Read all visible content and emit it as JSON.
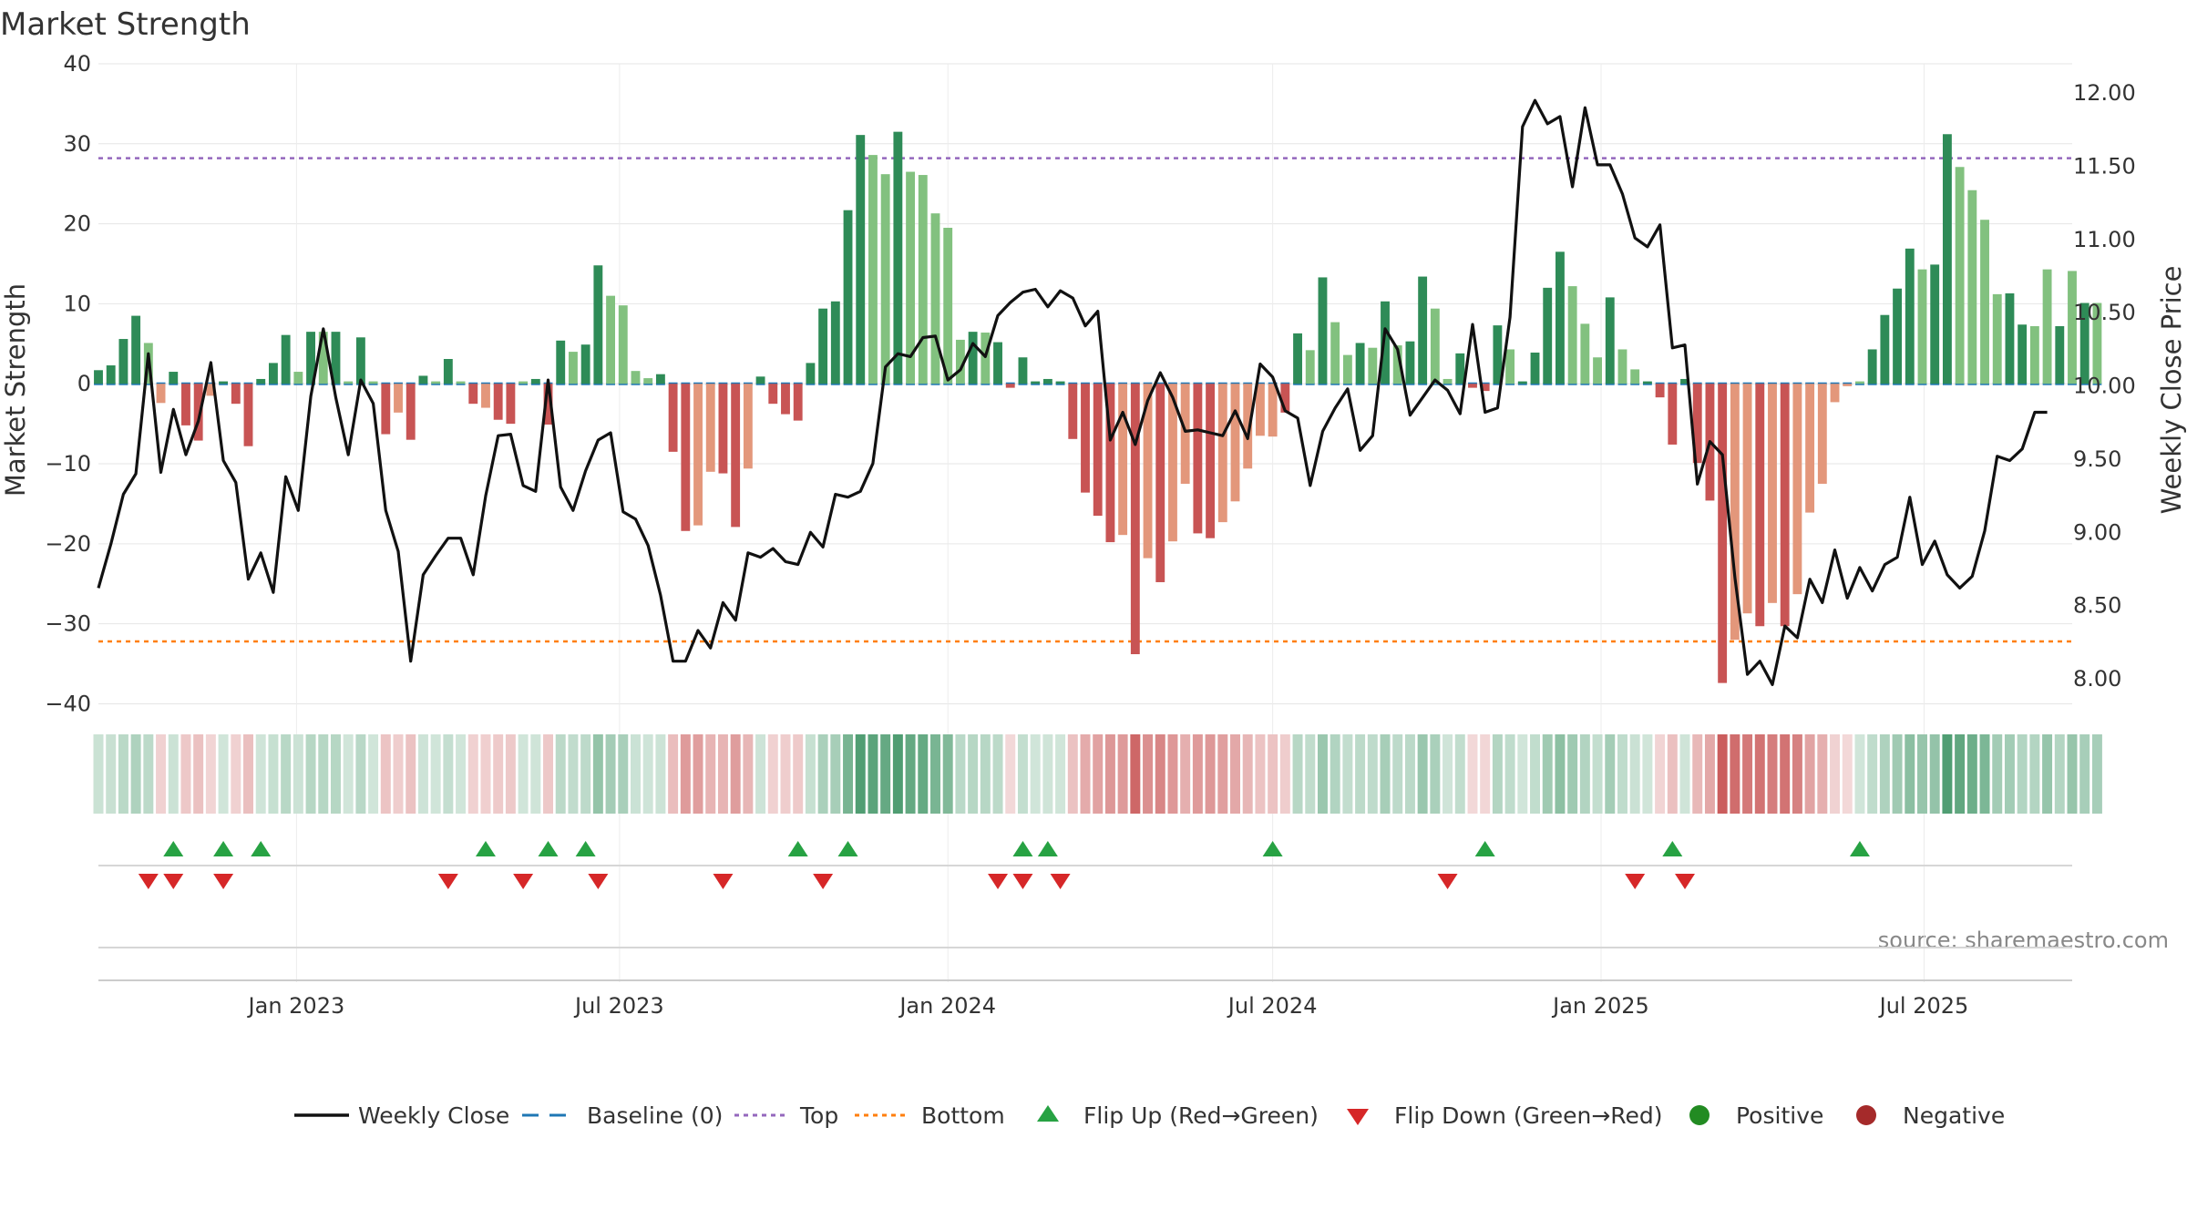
{
  "chart_data": {
    "type": "bar",
    "title": "Market Strength",
    "source": "source: sharemaestro.com",
    "y_left": {
      "label": "Market Strength",
      "lim": [
        -42,
        40
      ],
      "ticks": [
        40,
        30,
        20,
        10,
        0,
        -10,
        -20,
        -30,
        -40
      ],
      "tick_labels": [
        "40",
        "30",
        "20",
        "10",
        "0",
        "−10",
        "−20",
        "−30",
        "−40"
      ]
    },
    "y_right": {
      "label": "Weekly Close Price",
      "lim": [
        7.72,
        12.2
      ],
      "ticks": [
        12.0,
        11.5,
        11.0,
        10.5,
        10.0,
        9.5,
        9.0,
        8.5,
        8.0
      ],
      "tick_labels": [
        "12.00",
        "11.50",
        "11.00",
        "10.50",
        "10.00",
        "9.50",
        "9.00",
        "8.50",
        "8.00"
      ]
    },
    "x_axis": {
      "start": "2022-09-12",
      "end": "2025-09-22",
      "ticks": [
        {
          "date": "2023-01-01",
          "label": "Jan 2023"
        },
        {
          "date": "2023-07-01",
          "label": "Jul 2023"
        },
        {
          "date": "2024-01-01",
          "label": "Jan 2024"
        },
        {
          "date": "2024-07-01",
          "label": "Jul 2024"
        },
        {
          "date": "2025-01-01",
          "label": "Jan 2025"
        },
        {
          "date": "2025-07-01",
          "label": "Jul 2025"
        }
      ]
    },
    "reference_lines": {
      "baseline": 0,
      "top": 28.2,
      "bottom": -32.2
    },
    "colors": {
      "strong_pos": "#2e8b57",
      "weak_pos": "#82c17f",
      "strong_neg": "#c85454",
      "weak_neg": "#e3977b",
      "close": "#111111",
      "baseline": "#1f77b4",
      "top": "#9467bd",
      "bottom": "#ff7f0e",
      "flip_up": "#27a243",
      "flip_down": "#d62728",
      "positive": "#228b22",
      "negative": "#a52a2a"
    },
    "weeks": {
      "start_date": "2022-09-12",
      "strength": [
        1.7,
        2.3,
        5.6,
        8.5,
        5.1,
        -2.4,
        1.5,
        -5.2,
        -7.1,
        -1.5,
        0.3,
        -2.5,
        -7.8,
        0.6,
        2.6,
        6.1,
        1.5,
        6.5,
        6.5,
        6.5,
        0.3,
        5.8,
        0.3,
        -6.3,
        -3.6,
        -7.0,
        1.0,
        0.3,
        3.1,
        0.3,
        -2.5,
        -3.0,
        -4.5,
        -5.0,
        0.3,
        0.6,
        -5.1,
        5.4,
        4.0,
        4.9,
        14.8,
        11.0,
        9.8,
        1.6,
        0.7,
        1.2,
        -8.5,
        -18.4,
        -17.7,
        -11.0,
        -11.2,
        -17.9,
        -10.6,
        0.9,
        -2.5,
        -3.8,
        -4.6,
        2.6,
        9.4,
        10.3,
        21.7,
        31.1,
        28.6,
        26.2,
        31.5,
        26.5,
        26.1,
        21.3,
        19.5,
        5.5,
        6.5,
        6.4,
        5.2,
        -0.5,
        3.3,
        0.3,
        0.6,
        0.3,
        -6.9,
        -13.6,
        -16.5,
        -19.8,
        -18.9,
        -33.8,
        -21.8,
        -24.8,
        -19.7,
        -12.5,
        -18.7,
        -19.3,
        -17.3,
        -14.7,
        -10.6,
        -6.5,
        -6.6,
        -3.6,
        6.3,
        4.2,
        13.3,
        7.7,
        3.6,
        5.1,
        4.5,
        10.3,
        4.8,
        5.3,
        13.4,
        9.4,
        0.6,
        3.8,
        -0.5,
        -0.9,
        7.3,
        4.3,
        0.3,
        3.9,
        12.0,
        16.5,
        12.2,
        7.5,
        3.3,
        10.8,
        4.3,
        1.8,
        0.3,
        -1.7,
        -7.6,
        0.6,
        -9.9,
        -14.6,
        -37.4,
        -32.0,
        -28.7,
        -30.3,
        -27.4,
        -30.3,
        -26.3,
        -16.1,
        -12.5,
        -2.3,
        -0.3,
        0.3,
        4.3,
        8.6,
        11.9,
        16.9,
        14.3,
        14.9,
        31.2,
        27.1,
        24.2,
        20.5,
        11.2,
        11.3,
        7.4,
        7.2,
        14.3,
        7.2,
        14.1,
        10.1,
        10.1
      ],
      "strong": [
        1,
        1,
        1,
        1,
        0,
        0,
        1,
        1,
        1,
        0,
        1,
        1,
        1,
        1,
        1,
        1,
        0,
        1,
        0,
        1,
        0,
        1,
        0,
        1,
        0,
        1,
        1,
        0,
        1,
        0,
        1,
        0,
        1,
        1,
        0,
        1,
        1,
        1,
        0,
        1,
        1,
        0,
        0,
        0,
        0,
        1,
        1,
        1,
        0,
        0,
        1,
        1,
        0,
        1,
        1,
        1,
        1,
        1,
        1,
        1,
        1,
        1,
        0,
        0,
        1,
        0,
        0,
        0,
        0,
        0,
        1,
        0,
        1,
        1,
        1,
        1,
        1,
        1,
        1,
        1,
        1,
        1,
        0,
        1,
        0,
        1,
        0,
        0,
        1,
        1,
        0,
        0,
        0,
        0,
        0,
        1,
        1,
        0,
        1,
        0,
        0,
        1,
        0,
        1,
        0,
        1,
        1,
        0,
        0,
        1,
        1,
        1,
        1,
        0,
        1,
        1,
        1,
        1,
        0,
        0,
        0,
        1,
        0,
        0,
        1,
        1,
        1,
        1,
        1,
        1,
        1,
        0,
        0,
        1,
        0,
        1,
        0,
        0,
        0,
        0,
        0,
        0,
        1,
        1,
        1,
        1,
        0,
        1,
        1,
        0,
        0,
        0,
        0,
        1,
        1,
        0,
        0,
        1,
        0,
        1,
        0,
        0
      ],
      "close": [
        8.62,
        8.92,
        9.26,
        9.4,
        10.22,
        9.41,
        9.84,
        9.53,
        9.76,
        10.16,
        9.49,
        9.34,
        8.68,
        8.86,
        8.59,
        9.38,
        9.15,
        9.93,
        10.39,
        9.92,
        9.53,
        10.04,
        9.88,
        9.15,
        8.87,
        8.12,
        8.71,
        8.84,
        8.96,
        8.96,
        8.71,
        9.25,
        9.66,
        9.67,
        9.32,
        9.28,
        10.04,
        9.31,
        9.15,
        9.42,
        9.63,
        9.68,
        9.14,
        9.09,
        8.91,
        8.57,
        8.12,
        8.12,
        8.33,
        8.21,
        8.52,
        8.4,
        8.86,
        8.83,
        8.89,
        8.8,
        8.78,
        9.0,
        8.9,
        9.26,
        9.24,
        9.28,
        9.47,
        10.13,
        10.22,
        10.2,
        10.33,
        10.34,
        10.04,
        10.11,
        10.29,
        10.2,
        10.48,
        10.57,
        10.64,
        10.66,
        10.54,
        10.65,
        10.6,
        10.41,
        10.51,
        9.63,
        9.82,
        9.6,
        9.9,
        10.09,
        9.92,
        9.69,
        9.7,
        9.68,
        9.66,
        9.83,
        9.64,
        10.15,
        10.06,
        9.83,
        9.78,
        9.32,
        9.69,
        9.85,
        9.98,
        9.56,
        9.66,
        10.39,
        10.25,
        9.8,
        9.92,
        10.04,
        9.97,
        9.81,
        10.42,
        9.82,
        9.85,
        10.47,
        11.77,
        11.95,
        11.79,
        11.84,
        11.36,
        11.9,
        11.51,
        11.51,
        11.31,
        11.01,
        10.95,
        11.1,
        10.26,
        10.28,
        9.33,
        9.62,
        9.53,
        8.69,
        8.03,
        8.12,
        7.96,
        8.36,
        8.28,
        8.68,
        8.52,
        8.88,
        8.55,
        8.76,
        8.6,
        8.78,
        8.83,
        9.24,
        8.78,
        8.94,
        8.71,
        8.62,
        8.7,
        9.01,
        9.52,
        9.49,
        9.57,
        9.82,
        9.82
      ]
    },
    "flip_up_dates": [
      "2022-10-24",
      "2022-11-21",
      "2022-12-12",
      "2023-04-17",
      "2023-05-22",
      "2023-06-12",
      "2023-10-09",
      "2023-11-06",
      "2024-02-12",
      "2024-02-26",
      "2024-07-01",
      "2024-10-28",
      "2025-02-10",
      "2025-05-26"
    ],
    "flip_down_dates": [
      "2022-10-10",
      "2022-10-24",
      "2022-11-21",
      "2023-03-27",
      "2023-05-08",
      "2023-06-19",
      "2023-08-28",
      "2023-10-23",
      "2024-01-29",
      "2024-02-12",
      "2024-03-04",
      "2024-10-07",
      "2025-01-20",
      "2025-02-17"
    ],
    "legend": [
      {
        "key": "close",
        "label": "Weekly Close"
      },
      {
        "key": "baseline",
        "label": "Baseline (0)"
      },
      {
        "key": "top",
        "label": "Top"
      },
      {
        "key": "bottom",
        "label": "Bottom"
      },
      {
        "key": "flip_up",
        "label": "Flip Up (Red→Green)"
      },
      {
        "key": "flip_down",
        "label": "Flip Down (Green→Red)"
      },
      {
        "key": "positive",
        "label": "Positive"
      },
      {
        "key": "negative",
        "label": "Negative"
      }
    ]
  }
}
